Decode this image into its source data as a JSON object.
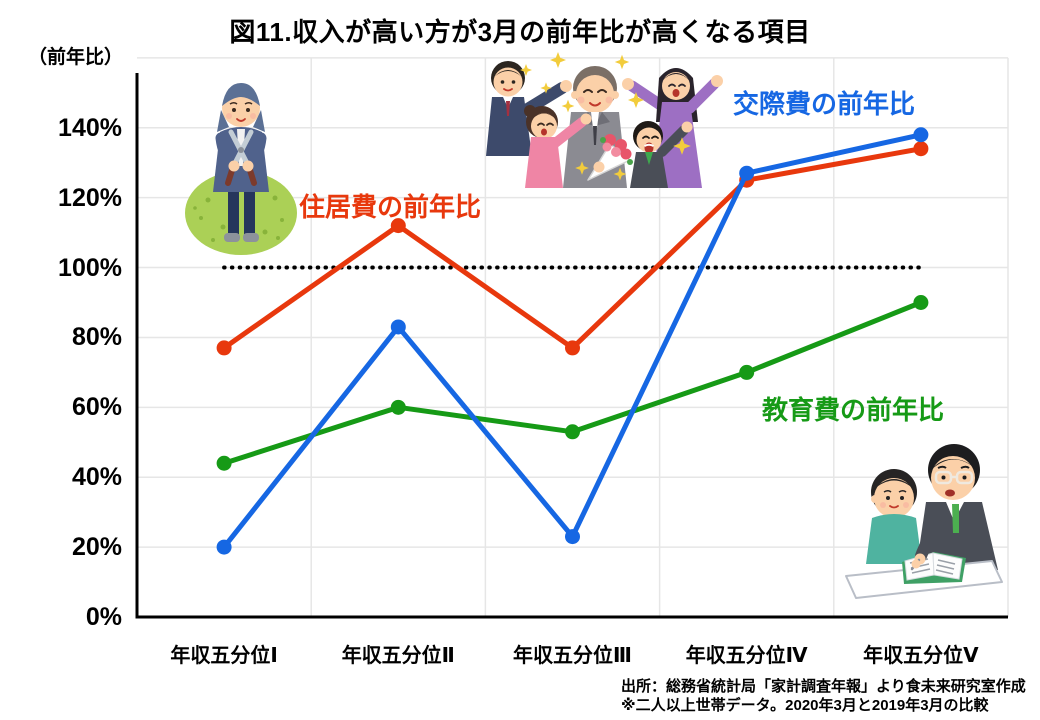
{
  "title": "図11.収入が高い方が3月の前年比が高くなる項目",
  "y_axis_unit": "（前年比）",
  "source": {
    "line1": "出所：総務省統計局「家計調査年報」より食未来研究室作成",
    "line2": "※二人以上世帯データ。2020年3月と2019年3月の比較"
  },
  "illustrations": {
    "gardener": "gardener-trimming-hedge-clipart",
    "celebration": "colleagues-celebrating-man-with-bouquet-clipart",
    "tutoring": "tutor-teaching-child-clipart"
  },
  "chart_data": {
    "type": "line",
    "title": "図11.収入が高い方が3月の前年比が高くなる項目",
    "xlabel": "",
    "ylabel": "（前年比）",
    "categories": [
      "年収五分位Ⅰ",
      "年収五分位Ⅱ",
      "年収五分位Ⅲ",
      "年収五分位Ⅳ",
      "年収五分位Ⅴ"
    ],
    "series": [
      {
        "name": "教育費の前年比",
        "color": "#169A16",
        "values": [
          44,
          60,
          53,
          70,
          90
        ]
      },
      {
        "name": "住居費の前年比",
        "color": "#E8380D",
        "values": [
          77,
          112,
          77,
          125,
          134
        ]
      },
      {
        "name": "交際費の前年比",
        "color": "#1667E3",
        "values": [
          20,
          83,
          23,
          127,
          138
        ]
      }
    ],
    "reference_line": {
      "value": 100,
      "color": "#000000",
      "style": "dotted"
    },
    "yticks": [
      "0%",
      "20%",
      "40%",
      "60%",
      "80%",
      "100%",
      "120%",
      "140%"
    ],
    "ytick_values": [
      0,
      20,
      40,
      60,
      80,
      100,
      120,
      140
    ],
    "ylim": [
      0,
      160
    ],
    "grid": true,
    "legend_position": "direct-line-labels",
    "grid_color": "#E6E6E6",
    "axis_color": "#000000"
  }
}
